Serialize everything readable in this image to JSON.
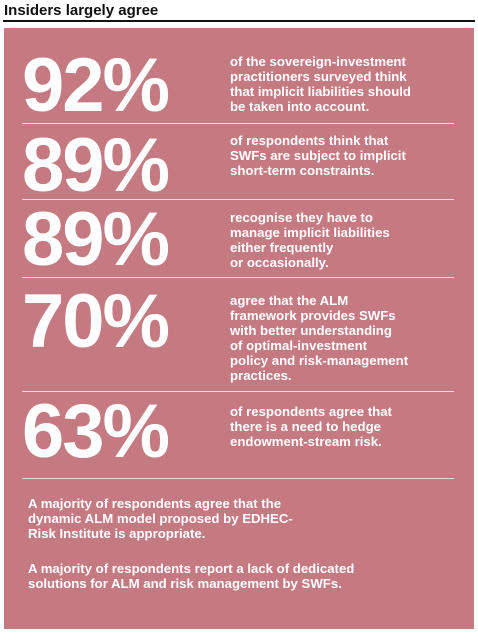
{
  "title": "Insiders largely agree",
  "colors": {
    "panel": "#c57a82",
    "text": "#ffffff",
    "title": "#111111"
  },
  "stats": [
    {
      "value": "92%",
      "text": "of the sovereign-investment\npractitioners surveyed think\nthat implicit liabilities should\nbe taken into account."
    },
    {
      "value": "89%",
      "text": "of respondents think that\nSWFs are subject to implicit\nshort-term constraints."
    },
    {
      "value": "89%",
      "text": "recognise they have to\nmanage implicit liabilities\neither frequently\nor occasionally."
    },
    {
      "value": "70%",
      "text": "agree that the ALM\nframework provides SWFs\nwith better understanding\nof optimal-investment\npolicy and risk-management\npractices."
    },
    {
      "value": "63%",
      "text": "of respondents agree that\nthere is a need to hedge\nendowment-stream risk."
    }
  ],
  "footer": [
    "A majority of respondents agree that the\ndynamic ALM model proposed by EDHEC-\nRisk Institute is appropriate.",
    "A majority of respondents report a lack of dedicated\nsolutions for ALM and risk management by SWFs."
  ]
}
